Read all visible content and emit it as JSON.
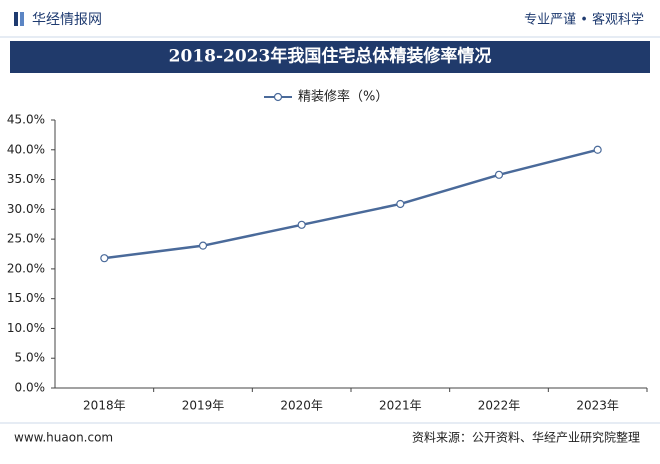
{
  "header": {
    "logo": "华经情报网",
    "slogan": "专业严谨 • 客观科学"
  },
  "chart_data": {
    "type": "line",
    "title": "2018-2023年我国住宅总体精装修率情况",
    "categories": [
      "2018年",
      "2019年",
      "2020年",
      "2021年",
      "2022年",
      "2023年"
    ],
    "series": [
      {
        "name": "精装修率（%）",
        "color": "#4a6a9a",
        "values": [
          21.8,
          23.9,
          27.4,
          30.9,
          35.8,
          40.0
        ]
      }
    ],
    "ylim": [
      0,
      45
    ],
    "yticks": [
      {
        "value": 0,
        "label": "0.0%"
      },
      {
        "value": 5,
        "label": "5.0%"
      },
      {
        "value": 10,
        "label": "10.0%"
      },
      {
        "value": 15,
        "label": "15.0%"
      },
      {
        "value": 20,
        "label": "20.0%"
      },
      {
        "value": 25,
        "label": "25.0%"
      },
      {
        "value": 30,
        "label": "30.0%"
      },
      {
        "value": 35,
        "label": "35.0%"
      },
      {
        "value": 40,
        "label": "40.0%"
      },
      {
        "value": 45,
        "label": "45.0%"
      }
    ]
  },
  "footer": {
    "website": "www.huaon.com",
    "source": "资料来源：公开资料、华经产业研究院整理"
  }
}
